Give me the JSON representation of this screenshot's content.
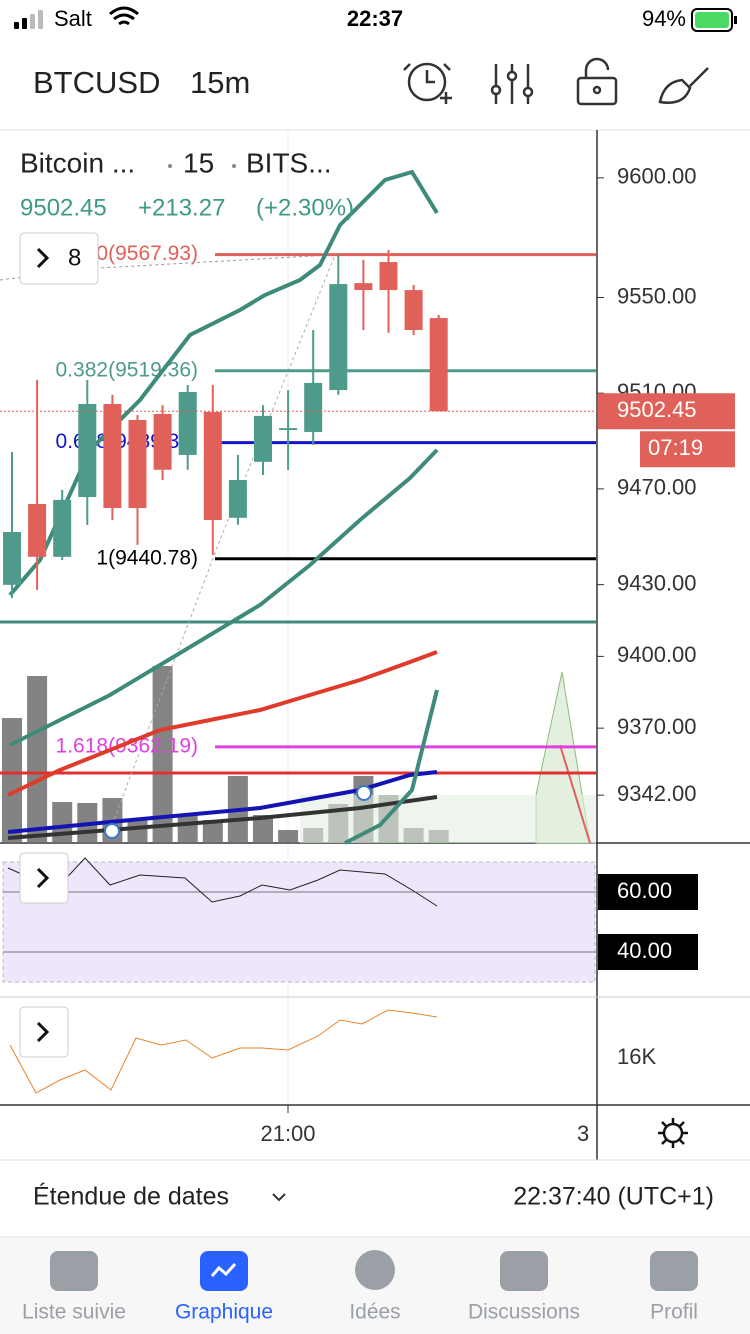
{
  "status_bar": {
    "carrier": "Salt",
    "time": "22:37",
    "battery": "94%"
  },
  "header": {
    "symbol": "BTCUSD",
    "interval": "15m"
  },
  "chart_data": {
    "type": "candlestick",
    "legend": {
      "name": "Bitcoin ...",
      "interval": "15",
      "exchange": "BITS...",
      "last": "9502.45",
      "change": "+213.27",
      "change_pct": "(+2.30%)"
    },
    "indicator_count": "8",
    "open": [
      9429.9,
      9463.7,
      9441.6,
      9466.6,
      9505.5,
      9498.8,
      9501.3,
      9484.2,
      9502.2,
      9457.9,
      9481.3,
      9494.6,
      9493.8,
      9511.3,
      9556.0,
      9564.8,
      9553.1,
      9541.4
    ],
    "high": [
      9485.4,
      9515.5,
      9469.6,
      9515.5,
      9509.3,
      9500.9,
      9505.0,
      9513.4,
      9513.4,
      9484.2,
      9505.0,
      9511.3,
      9536.4,
      9567.7,
      9565.7,
      9569.9,
      9555.2,
      9542.7
    ],
    "low": [
      9424.4,
      9427.8,
      9440.3,
      9454.9,
      9457.0,
      9446.6,
      9473.7,
      9478.0,
      9442.4,
      9455.0,
      9475.8,
      9477.9,
      9488.4,
      9509.3,
      9536.4,
      9535.2,
      9534.3,
      9502.45
    ],
    "close": [
      9452.0,
      9441.6,
      9465.4,
      9505.5,
      9462.0,
      9462.0,
      9478.0,
      9510.5,
      9457.0,
      9473.7,
      9500.5,
      9495.4,
      9514.3,
      9555.6,
      9553.1,
      9553.1,
      9536.4,
      9502.45
    ],
    "up_color": "#4e9a8b",
    "down_color": "#e0605a",
    "ylim": [
      9322,
      9620
    ],
    "yticks": [
      {
        "value": 9600,
        "label": "9600.00"
      },
      {
        "value": 9550,
        "label": "9550.00"
      },
      {
        "value": 9510,
        "label": "9510.00"
      },
      {
        "value": 9470,
        "label": "9470.00"
      },
      {
        "value": 9430,
        "label": "9430.00"
      },
      {
        "value": 9400,
        "label": "9400.00"
      },
      {
        "value": 9370,
        "label": "9370.00"
      },
      {
        "value": 9342,
        "label": "9342.00"
      }
    ],
    "last_price": {
      "value": 9502.45,
      "label": "9502.45"
    },
    "countdown": "07:19",
    "fib_levels": [
      {
        "value": 9567.93,
        "label": "0(9567.93)",
        "color": "#e0605a"
      },
      {
        "value": 9519.36,
        "label": "0.382(9519.36)",
        "color": "#4e9a8b"
      },
      {
        "value": 9489.35,
        "label": "0.618(9489.35)",
        "color": "#1414c8"
      },
      {
        "value": 9440.78,
        "label": "1(9440.78)",
        "color": "#000000"
      },
      {
        "value": 9362.19,
        "label": "1.618(9362.19)",
        "color": "#e040e0"
      }
    ],
    "time_labels": [
      "21:00",
      "3"
    ]
  },
  "rsi": {
    "ylim": [
      25.67,
      75.67
    ],
    "yticks": [
      {
        "value": 60,
        "label": "60.00"
      },
      {
        "value": 40,
        "label": "40.00"
      }
    ]
  },
  "volume": {
    "yticks": [
      {
        "value": 16000,
        "label": "16K"
      }
    ]
  },
  "footer": {
    "range": "Étendue de dates",
    "clock": "22:37:40 (UTC+1)"
  },
  "tabs": [
    "Liste suivie",
    "Graphique",
    "Idées",
    "Discussions",
    "Profil"
  ]
}
